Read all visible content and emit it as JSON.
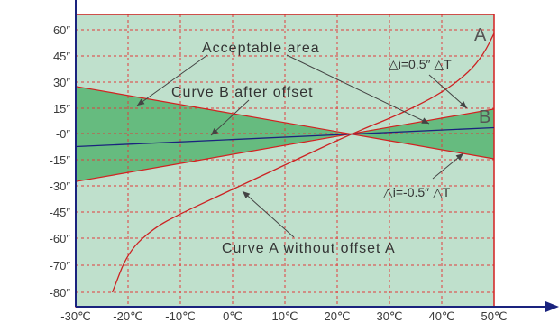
{
  "chart_data": {
    "type": "line",
    "x_ticks": [
      "-30℃",
      "-20℃",
      "-10℃",
      "0℃",
      "10℃",
      "20℃",
      "30℃",
      "40℃",
      "50℃"
    ],
    "x_tick_values": [
      -30,
      -20,
      -10,
      0,
      10,
      20,
      30,
      40,
      50
    ],
    "y_ticks": [
      "60″",
      "45″",
      "30″",
      "15″",
      "-0″",
      "-15″",
      "-30″",
      "-45″",
      "-60″",
      "-70″",
      "-80″"
    ],
    "y_tick_values": [
      60,
      45,
      30,
      15,
      0,
      -15,
      -30,
      -45,
      -60,
      -70,
      -80
    ],
    "xlim": [
      -30,
      50
    ],
    "ylim": [
      -80,
      60
    ],
    "grid": true,
    "colors": {
      "background": "#bfe0cc",
      "acceptable_area": "#66bb7f",
      "grid": "#e03c3c",
      "boundary": "#d42020",
      "curve_a": "#cc2222",
      "curve_b": "#1a237e",
      "axis": "#1a237e",
      "arrow": "#444444"
    },
    "series": [
      {
        "name": "A",
        "x": [
          -23,
          -20,
          -15,
          -10,
          -5,
          0,
          5,
          10,
          15,
          20,
          23,
          26,
          30,
          35,
          40,
          45,
          48,
          50
        ],
        "y": [
          -80,
          -65,
          -54,
          -46,
          -39,
          -32,
          -25,
          -18,
          -11,
          -4,
          0,
          4,
          9,
          16,
          24,
          35,
          46,
          58
        ]
      },
      {
        "name": "B",
        "x": [
          -30,
          50
        ],
        "y": [
          -7.5,
          3.5
        ]
      },
      {
        "name": "△i=0.5″ △T",
        "x": [
          -30,
          50
        ],
        "y": [
          -27.5,
          14.5
        ]
      },
      {
        "name": "△i=-0.5″ △T",
        "x": [
          -30,
          50
        ],
        "y": [
          27.5,
          -14.5
        ]
      }
    ],
    "annotations": {
      "acceptable_area": "Acceptable area",
      "curve_b_offset": "Curve B after offset",
      "curve_a_no_offset": "Curve A without offset A",
      "delta_pos": "△i=0.5″ △T",
      "delta_neg": "△i=-0.5″ △T",
      "tag_a": "A",
      "tag_b": "B"
    }
  }
}
